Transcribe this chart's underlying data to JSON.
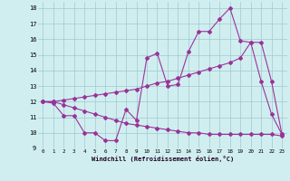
{
  "xlabel": "Windchill (Refroidissement éolien,°C)",
  "xlim": [
    -0.5,
    23.5
  ],
  "ylim": [
    9,
    18.4
  ],
  "xticks": [
    0,
    1,
    2,
    3,
    4,
    5,
    6,
    7,
    8,
    9,
    10,
    11,
    12,
    13,
    14,
    15,
    16,
    17,
    18,
    19,
    20,
    21,
    22,
    23
  ],
  "yticks": [
    9,
    10,
    11,
    12,
    13,
    14,
    15,
    16,
    17,
    18
  ],
  "bg_color": "#d0eef0",
  "grid_color": "#a0c8cc",
  "line_color": "#993399",
  "line1_x": [
    0,
    1,
    2,
    3,
    4,
    5,
    6,
    7,
    8,
    9,
    10,
    11,
    12,
    13,
    14,
    15,
    16,
    17,
    18,
    19,
    20,
    21,
    22,
    23
  ],
  "line1_y": [
    12.0,
    11.9,
    11.1,
    11.1,
    10.0,
    10.0,
    9.5,
    9.5,
    11.5,
    10.8,
    14.8,
    15.1,
    13.0,
    13.1,
    15.2,
    16.5,
    16.5,
    17.3,
    18.0,
    15.9,
    15.8,
    13.3,
    11.2,
    9.9
  ],
  "line2_x": [
    0,
    1,
    2,
    3,
    4,
    5,
    6,
    7,
    8,
    9,
    10,
    11,
    12,
    13,
    14,
    15,
    16,
    17,
    18,
    19,
    20,
    21,
    22,
    23
  ],
  "line2_y": [
    12.0,
    12.0,
    12.1,
    12.2,
    12.3,
    12.4,
    12.5,
    12.6,
    12.7,
    12.8,
    13.0,
    13.2,
    13.3,
    13.5,
    13.7,
    13.9,
    14.1,
    14.3,
    14.5,
    14.8,
    15.8,
    15.8,
    13.3,
    9.9
  ],
  "line3_x": [
    0,
    1,
    2,
    3,
    4,
    5,
    6,
    7,
    8,
    9,
    10,
    11,
    12,
    13,
    14,
    15,
    16,
    17,
    18,
    19,
    20,
    21,
    22,
    23
  ],
  "line3_y": [
    12.0,
    12.0,
    11.8,
    11.6,
    11.4,
    11.2,
    11.0,
    10.8,
    10.6,
    10.5,
    10.4,
    10.3,
    10.2,
    10.1,
    10.0,
    10.0,
    9.9,
    9.9,
    9.9,
    9.9,
    9.9,
    9.9,
    9.9,
    9.8
  ]
}
